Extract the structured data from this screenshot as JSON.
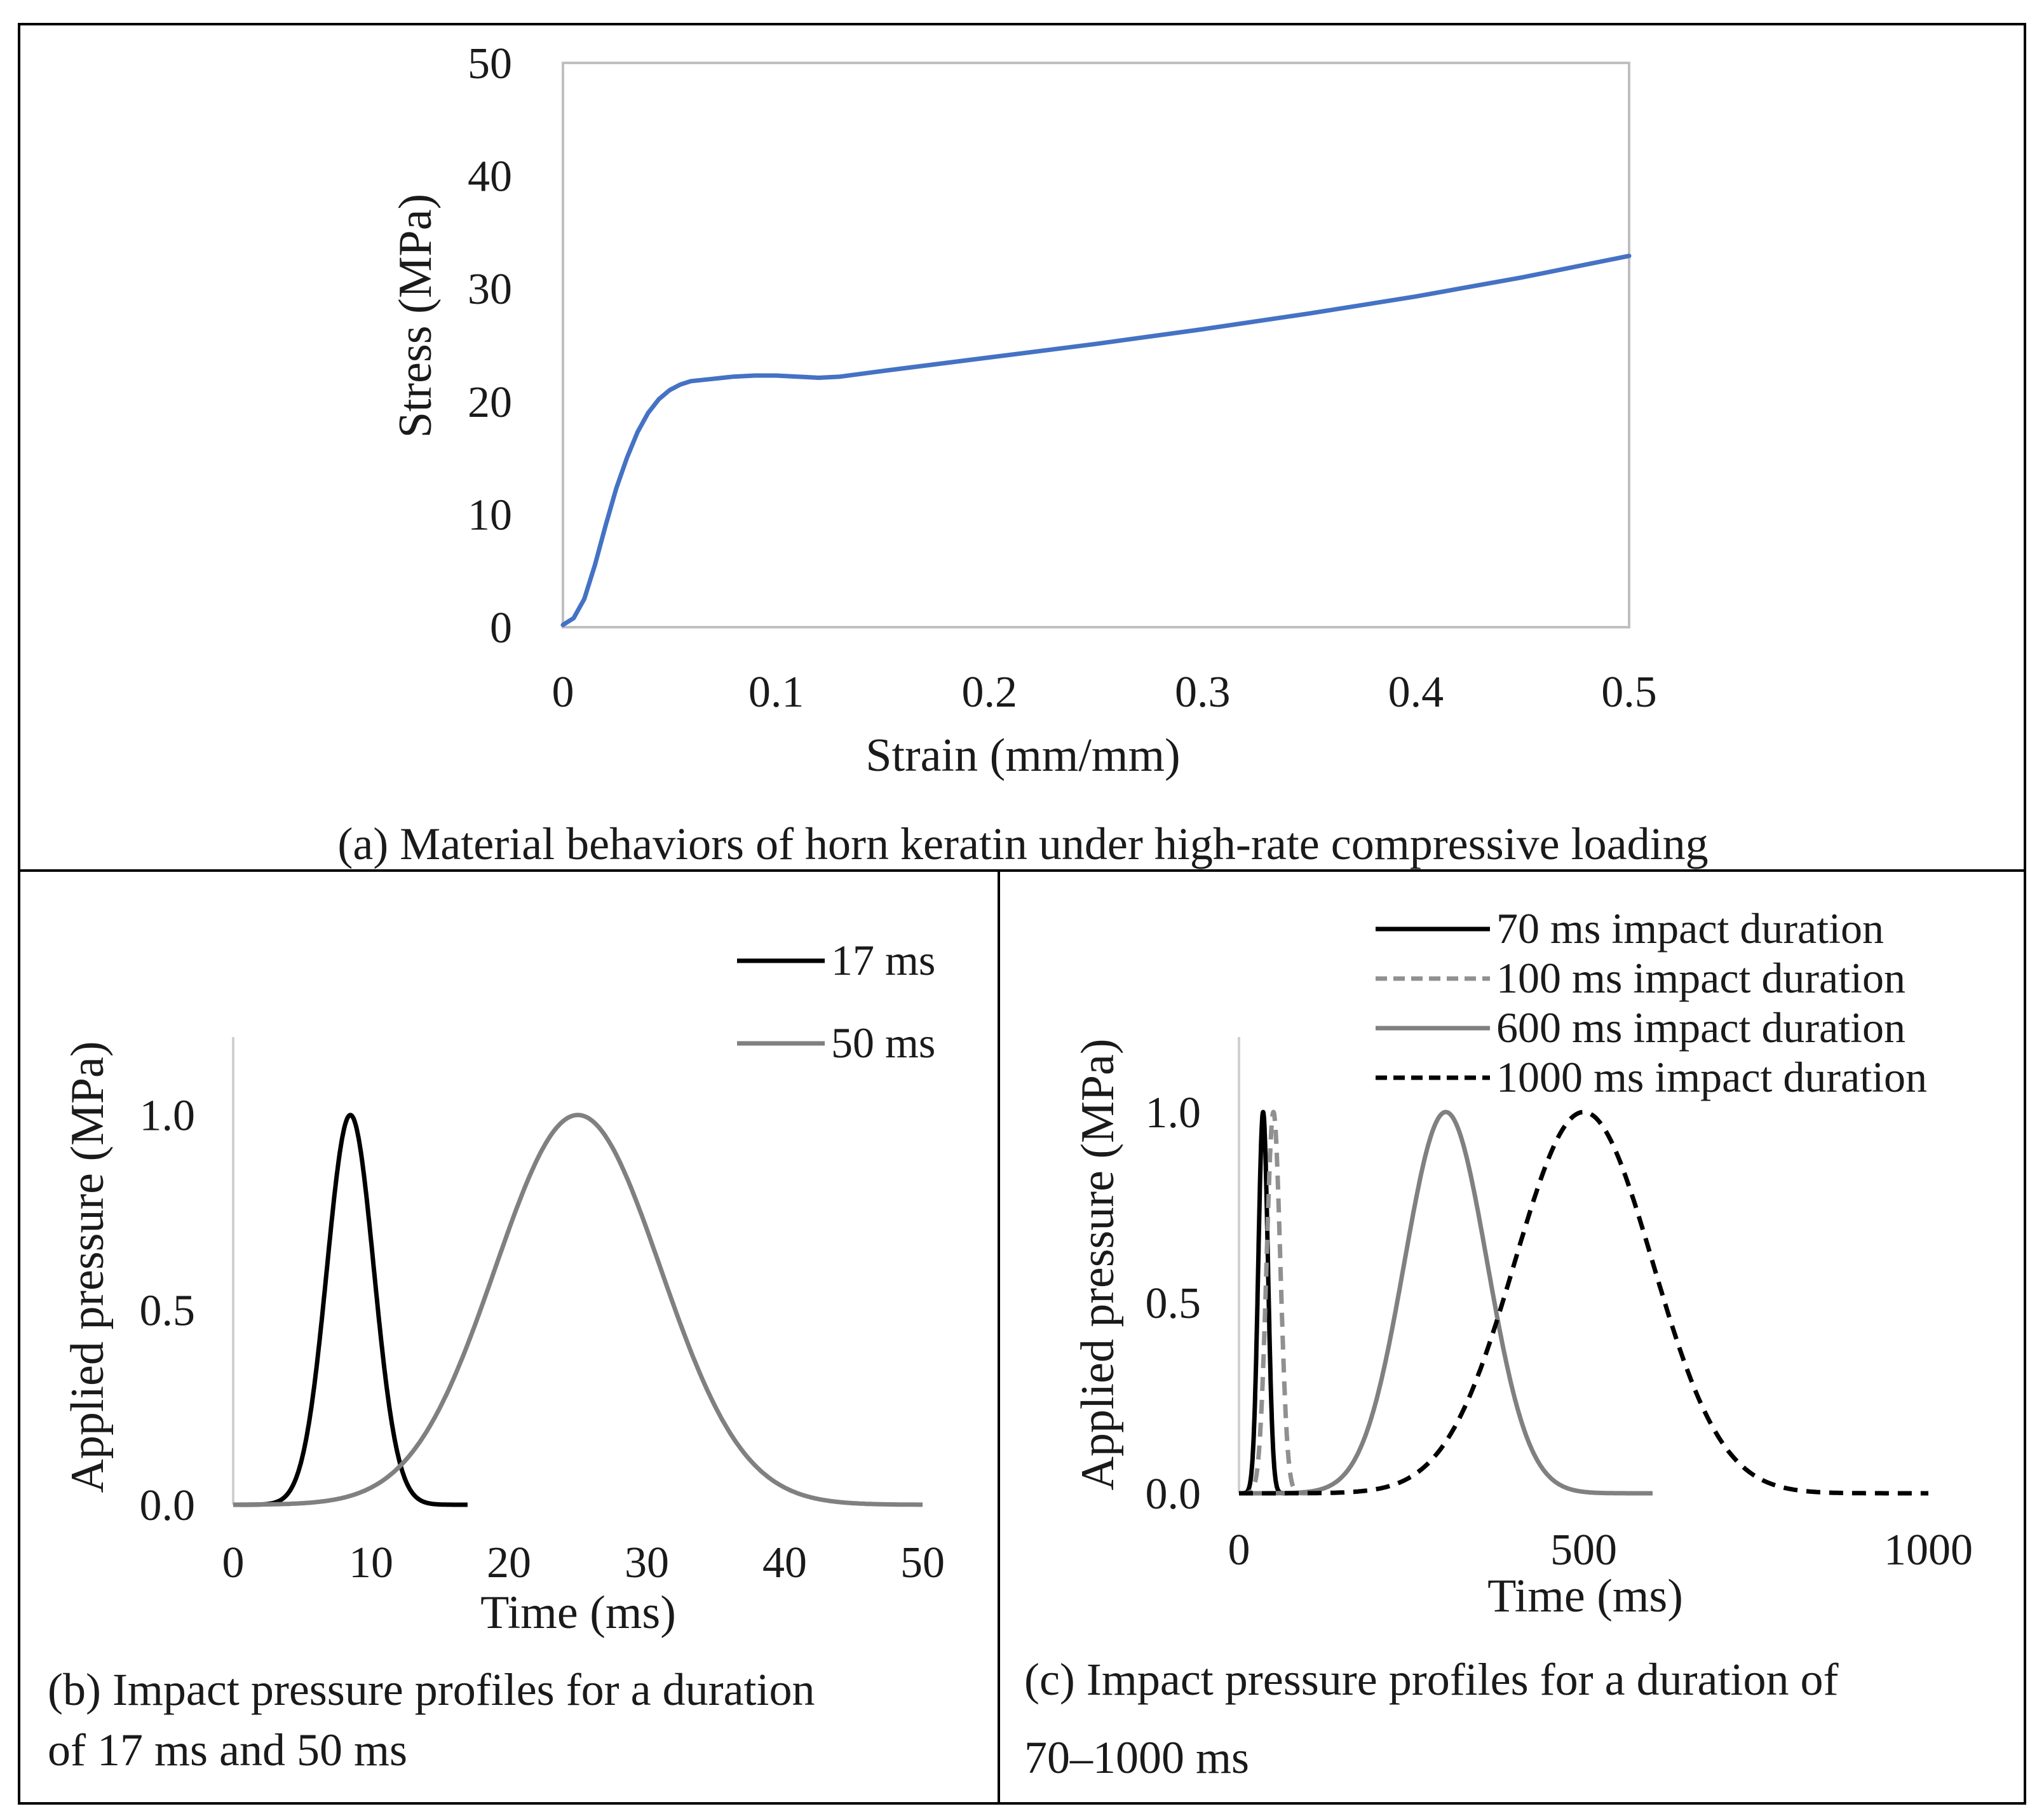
{
  "chart_data": [
    {
      "type": "line",
      "caption": "(a) Material behaviors of horn keratin under high-rate compressive loading",
      "xlabel": "Strain (mm/mm)",
      "ylabel": "Stress (MPa)",
      "xlim": [
        0,
        0.5
      ],
      "ylim": [
        0,
        50
      ],
      "xticks": [
        "0",
        "0.1",
        "0.2",
        "0.3",
        "0.4",
        "0.5"
      ],
      "yticks": [
        "0",
        "10",
        "20",
        "30",
        "40",
        "50"
      ],
      "grid": false,
      "series": [
        {
          "name": "horn keratin",
          "color": "#4472C4",
          "x": [
            0,
            0.005,
            0.01,
            0.015,
            0.02,
            0.025,
            0.03,
            0.035,
            0.04,
            0.045,
            0.05,
            0.055,
            0.06,
            0.07,
            0.08,
            0.09,
            0.1,
            0.11,
            0.12,
            0.13,
            0.15,
            0.2,
            0.25,
            0.3,
            0.35,
            0.4,
            0.45,
            0.5
          ],
          "y": [
            0.2,
            0.8,
            2.5,
            5.5,
            9.0,
            12.3,
            15.0,
            17.3,
            19.0,
            20.2,
            21.0,
            21.5,
            21.8,
            22.0,
            22.2,
            22.3,
            22.3,
            22.2,
            22.1,
            22.2,
            22.7,
            23.9,
            25.1,
            26.4,
            27.8,
            29.3,
            31.0,
            32.9
          ]
        }
      ]
    },
    {
      "type": "line",
      "caption_lines": [
        "(b) Impact pressure profiles for a duration",
        "of 17 ms and 50 ms"
      ],
      "xlabel": "Time (ms)",
      "ylabel": "Applied pressure (MPa)",
      "xlim": [
        0,
        50
      ],
      "ylim": [
        0,
        1.2
      ],
      "xticks": [
        "0",
        "10",
        "20",
        "30",
        "40",
        "50"
      ],
      "yticks": [
        "0.0",
        "0.5",
        "1.0"
      ],
      "series": [
        {
          "name": "17 ms",
          "color": "#000000",
          "dash": "solid",
          "peak_time": 8.5,
          "width": 1.7,
          "peak": 1.0,
          "end_time": 17
        },
        {
          "name": "50 ms",
          "color": "#808080",
          "dash": "solid",
          "peak_time": 25,
          "width": 6.0,
          "peak": 1.0,
          "end_time": 50
        }
      ]
    },
    {
      "type": "line",
      "caption_lines": [
        "(c) Impact pressure profiles for a duration of",
        "70–1000 ms"
      ],
      "xlabel": "Time (ms)",
      "ylabel": "Applied pressure (MPa)",
      "xlim": [
        0,
        1000
      ],
      "ylim": [
        0,
        1.2
      ],
      "xticks": [
        "0",
        "500",
        "1000"
      ],
      "yticks": [
        "0.0",
        "0.5",
        "1.0"
      ],
      "series": [
        {
          "name": "70 ms impact duration",
          "color": "#000000",
          "dash": "solid",
          "peak_time": 35,
          "width": 7,
          "peak": 1.0,
          "end_time": 70
        },
        {
          "name": "100 ms impact duration",
          "color": "#909090",
          "dash": "dashed",
          "peak_time": 50,
          "width": 10,
          "peak": 1.0,
          "end_time": 100
        },
        {
          "name": "600 ms impact duration",
          "color": "#808080",
          "dash": "solid",
          "peak_time": 300,
          "width": 60,
          "peak": 1.0,
          "end_time": 600
        },
        {
          "name": "1000 ms impact duration",
          "color": "#000000",
          "dash": "dashed",
          "peak_time": 500,
          "width": 100,
          "peak": 1.0,
          "end_time": 1000
        }
      ]
    }
  ]
}
